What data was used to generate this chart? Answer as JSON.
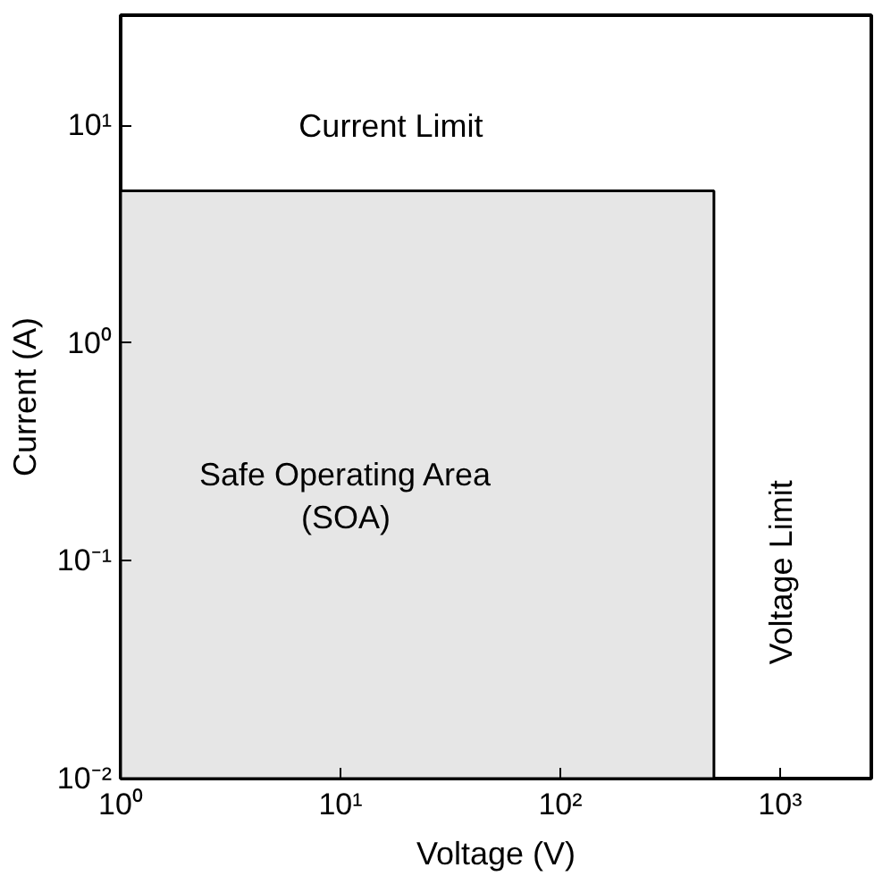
{
  "chart_data": {
    "type": "area",
    "xlabel": "Voltage (V)",
    "ylabel": "Current (A)",
    "x": [
      1,
      500
    ],
    "series": [
      {
        "color": "#e6e6e6",
        "values": [
          5,
          5
        ]
      }
    ],
    "log": "xy",
    "grid": false,
    "xlim": [
      1,
      2600
    ],
    "ylim": [
      0.01,
      32
    ],
    "xticks": [
      {
        "value": 1,
        "label": "10⁰"
      },
      {
        "value": 10,
        "label": "10¹"
      },
      {
        "value": 100,
        "label": "10²"
      },
      {
        "value": 1000,
        "label": "10³"
      }
    ],
    "yticks": [
      {
        "value": 0.01,
        "label": "10⁻²"
      },
      {
        "value": 0.1,
        "label": "10⁻¹"
      },
      {
        "value": 1,
        "label": "10⁰"
      },
      {
        "value": 10,
        "label": "10¹"
      }
    ],
    "annotations": [
      "Current Limit",
      "Safe Operating Area\n(SOA)",
      "Voltage Limit"
    ]
  }
}
